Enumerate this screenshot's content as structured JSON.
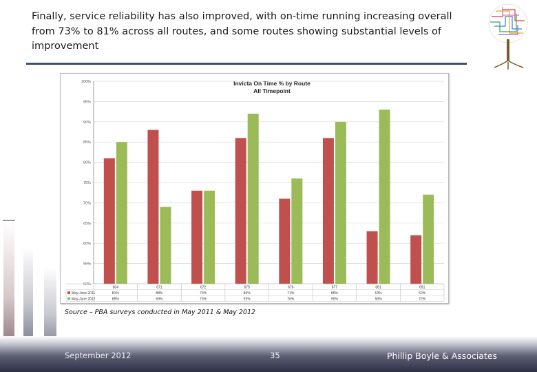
{
  "slide": {
    "title": "Finally, service reliability has also improved, with on-time running increasing overall from 73% to 81% across all routes, and some routes showing substantial levels of improvement",
    "source": "Source – PBA surveys conducted in May 2011 & May 2012",
    "footer_date": "September 2012",
    "footer_page": "35",
    "footer_author": "Phillip Boyle & Associates"
  },
  "colors": {
    "series_2011": "#c0504d",
    "series_2012": "#9bbb59",
    "rule": "#3d4f6e"
  },
  "chart_data": {
    "type": "bar",
    "title": "Invicta On Time % by Route",
    "subtitle": "All Timepoint",
    "categories": [
      "604",
      "671",
      "672",
      "675",
      "676",
      "677",
      "681",
      "691"
    ],
    "ylim": [
      50,
      100
    ],
    "ytick_labels": [
      "50%",
      "55%",
      "60%",
      "65%",
      "70%",
      "75%",
      "80%",
      "85%",
      "90%",
      "95%",
      "100%"
    ],
    "series": [
      {
        "name": "May-June 2011",
        "values": [
          81,
          88,
          73,
          86,
          71,
          86,
          63,
          62
        ]
      },
      {
        "name": "May-June 2012",
        "values": [
          85,
          69,
          73,
          92,
          76,
          90,
          93,
          72
        ]
      }
    ],
    "table_rows": [
      {
        "label": "May-June 2011",
        "cells": [
          "81%",
          "88%",
          "73%",
          "86%",
          "71%",
          "86%",
          "63%",
          "62%"
        ]
      },
      {
        "label": "May-June 2012",
        "cells": [
          "85%",
          "69%",
          "73%",
          "92%",
          "76%",
          "90%",
          "93%",
          "72%"
        ]
      }
    ]
  }
}
